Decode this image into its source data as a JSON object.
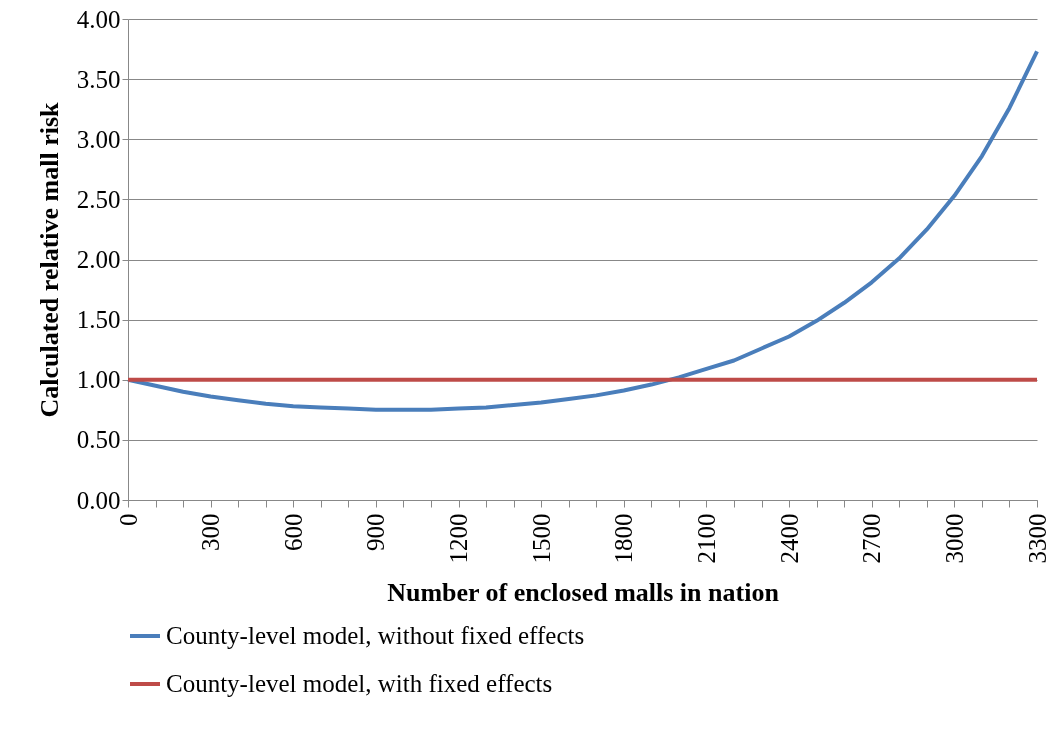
{
  "chart_data": {
    "type": "line",
    "xlabel": "Number of enclosed malls in nation",
    "ylabel": "Calculated relative mall risk",
    "x": [
      0,
      100,
      200,
      300,
      400,
      500,
      600,
      700,
      800,
      900,
      1000,
      1100,
      1200,
      1300,
      1400,
      1500,
      1600,
      1700,
      1800,
      1900,
      2000,
      2100,
      2200,
      2300,
      2400,
      2500,
      2600,
      2700,
      2800,
      2900,
      3000,
      3100,
      3200,
      3300
    ],
    "series": [
      {
        "name": "County-level model, without fixed effects",
        "color": "#4a7ebb",
        "values": [
          1.0,
          0.95,
          0.9,
          0.86,
          0.83,
          0.8,
          0.78,
          0.77,
          0.76,
          0.75,
          0.75,
          0.75,
          0.76,
          0.77,
          0.79,
          0.81,
          0.84,
          0.87,
          0.91,
          0.96,
          1.02,
          1.09,
          1.16,
          1.26,
          1.36,
          1.49,
          1.64,
          1.81,
          2.01,
          2.25,
          2.53,
          2.86,
          3.26,
          3.73
        ]
      },
      {
        "name": "County-level model, with fixed effects",
        "color": "#be4b48",
        "values": [
          1,
          1,
          1,
          1,
          1,
          1,
          1,
          1,
          1,
          1,
          1,
          1,
          1,
          1,
          1,
          1,
          1,
          1,
          1,
          1,
          1,
          1,
          1,
          1,
          1,
          1,
          1,
          1,
          1,
          1,
          1,
          1,
          1,
          1
        ]
      }
    ],
    "xlim": [
      0,
      3300
    ],
    "xticks": [
      0,
      {
        "value": 100,
        "label": null
      },
      {
        "value": 200,
        "label": null
      },
      300,
      {
        "value": 400,
        "label": null
      },
      {
        "value": 500,
        "label": null
      },
      600,
      {
        "value": 700,
        "label": null
      },
      {
        "value": 800,
        "label": null
      },
      900,
      {
        "value": 1000,
        "label": null
      },
      {
        "value": 1100,
        "label": null
      },
      1200,
      {
        "value": 1300,
        "label": null
      },
      {
        "value": 1400,
        "label": null
      },
      1500,
      {
        "value": 1600,
        "label": null
      },
      {
        "value": 1700,
        "label": null
      },
      1800,
      {
        "value": 1900,
        "label": null
      },
      {
        "value": 2000,
        "label": null
      },
      2100,
      {
        "value": 2200,
        "label": null
      },
      {
        "value": 2300,
        "label": null
      },
      2400,
      {
        "value": 2500,
        "label": null
      },
      {
        "value": 2600,
        "label": null
      },
      2700,
      {
        "value": 2800,
        "label": null
      },
      {
        "value": 2900,
        "label": null
      },
      3000,
      {
        "value": 3100,
        "label": null
      },
      {
        "value": 3200,
        "label": null
      },
      3300
    ],
    "ylim": [
      0,
      4
    ],
    "yticks": [
      {
        "value": 0,
        "label": "0.00"
      },
      {
        "value": 0.5,
        "label": "0.50"
      },
      {
        "value": 1,
        "label": "1.00"
      },
      {
        "value": 1.5,
        "label": "1.50"
      },
      {
        "value": 2,
        "label": "2.00"
      },
      {
        "value": 2.5,
        "label": "2.50"
      },
      {
        "value": 3,
        "label": "3.00"
      },
      {
        "value": 3.5,
        "label": "3.50"
      },
      {
        "value": 4,
        "label": "4.00"
      }
    ],
    "grid": "y",
    "legend": "bottom",
    "line_style": "solid",
    "marker": "none"
  }
}
